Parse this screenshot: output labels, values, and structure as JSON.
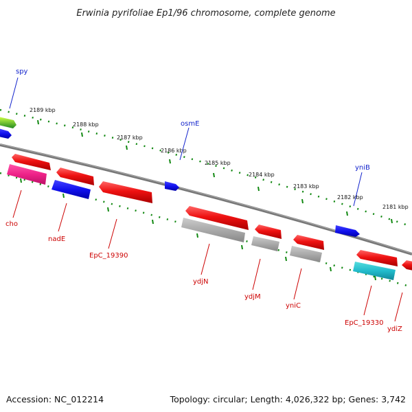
{
  "title": "Erwinia pyrifoliae Ep1/96 chromosome, complete genome",
  "footer": {
    "accession": "Accession: NC_012214",
    "summary": "Topology: circular; Length: 4,026,322 bp; Genes: 3,742"
  },
  "ticks": [
    "2189 kbp",
    "2188 kbp",
    "2187 kbp",
    "2186 kbp",
    "2185 kbp",
    "2184 kbp",
    "2183 kbp",
    "2182 kbp",
    "2181 kbp"
  ],
  "labels_top": [
    "spy",
    "osmE",
    "yniB"
  ],
  "labels_bottom": [
    "cho",
    "nadE",
    "EpC_19390",
    "ydjN",
    "ydjM",
    "yniC",
    "EpC_19330",
    "ydiZ"
  ],
  "colors": {
    "forward_gene": "#ee1111",
    "reverse_label": "#cc0000",
    "top_label": "#1122cc",
    "blue_gene": "#1111ee",
    "pink_gene": "#ee2288",
    "grey_gene": "#aaaaaa",
    "cyan_gene": "#22bbcc",
    "backbone": "#777777",
    "tick": "#118811"
  }
}
